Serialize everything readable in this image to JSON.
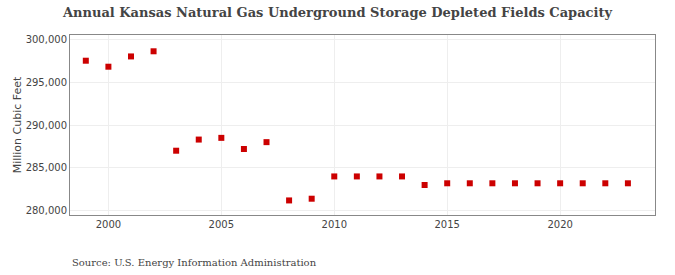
{
  "chart_data": {
    "type": "scatter",
    "title": "Annual Kansas Natural Gas Underground Storage Depleted Fields Capacity",
    "ylabel": "Million Cubic Feet",
    "source": "Source: U.S. Energy Information Administration",
    "x": [
      1999,
      2000,
      2001,
      2002,
      2003,
      2004,
      2005,
      2006,
      2007,
      2008,
      2009,
      2010,
      2011,
      2012,
      2013,
      2014,
      2015,
      2016,
      2017,
      2018,
      2019,
      2020,
      2021,
      2022,
      2023
    ],
    "values": [
      297500,
      296800,
      298000,
      298600,
      287000,
      288300,
      288500,
      287200,
      288000,
      281200,
      281400,
      284000,
      284000,
      284000,
      284000,
      283000,
      283200,
      283200,
      283200,
      283200,
      283200,
      283200,
      283200,
      283200,
      283200
    ],
    "color": "#cc0000",
    "marker": "square",
    "xlim": [
      1998.3,
      2024.2
    ],
    "xticks": [
      2000,
      2005,
      2010,
      2015,
      2020
    ],
    "ylim": [
      279500,
      300500
    ],
    "yticks": [
      {
        "value": 280000,
        "label": "280,000"
      },
      {
        "value": 285000,
        "label": "285,000"
      },
      {
        "value": 290000,
        "label": "290,000"
      },
      {
        "value": 295000,
        "label": "295,000"
      },
      {
        "value": 300000,
        "label": "300,000"
      }
    ],
    "grid": true
  }
}
